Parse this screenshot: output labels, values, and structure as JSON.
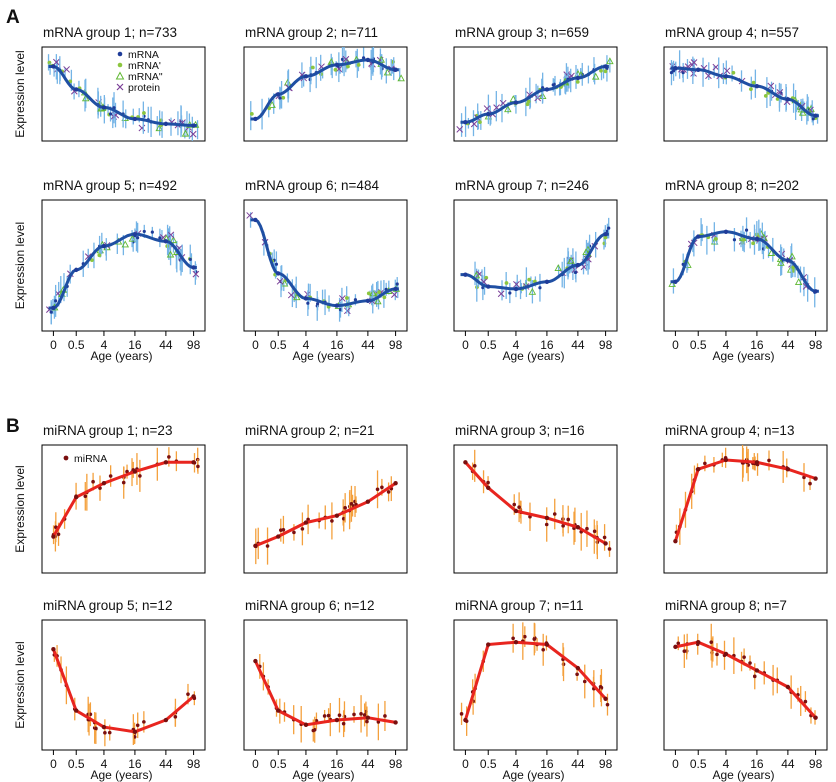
{
  "panel_letters": [
    "A",
    "B"
  ],
  "y_axis_label": "Expression level",
  "x_axis_label": "Age (years)",
  "x_ticks": [
    "0",
    "0.5",
    "4",
    "16",
    "44",
    "98"
  ],
  "colors": {
    "mrna": "#1f3c99",
    "mrna_prime": "#8cc63f",
    "mrna_dprime": "#5fb832",
    "protein": "#7b3f98",
    "mrna_fit": "#1f4fa3",
    "mrna_errbar": "#74b4e6",
    "mirna": "#7a0f0f",
    "mirna_fit": "#e8251f",
    "mirna_errbar": "#f4a03c"
  },
  "legends": {
    "mrna": [
      "mRNA",
      "mRNA'",
      "mRNA\"",
      "protein"
    ],
    "mirna": [
      "miRNA"
    ]
  },
  "chart_data": [
    {
      "type": "line",
      "section": "A",
      "title": "mRNA group 1;  n=733",
      "xlabel": "",
      "ylabel": "Expression level",
      "x": [
        0,
        0.5,
        4,
        16,
        44,
        98
      ],
      "series": [
        {
          "name": "mRNA",
          "values": [
            0.86,
            0.58,
            0.36,
            0.22,
            0.16,
            0.14
          ]
        }
      ]
    },
    {
      "type": "line",
      "section": "A",
      "title": "mRNA group 2;  n=711",
      "xlabel": "",
      "ylabel": "Expression level",
      "x": [
        0,
        0.5,
        4,
        16,
        44,
        98
      ],
      "series": [
        {
          "name": "mRNA",
          "values": [
            0.22,
            0.52,
            0.74,
            0.88,
            0.94,
            0.82
          ]
        }
      ]
    },
    {
      "type": "line",
      "section": "A",
      "title": "mRNA group 3;  n=659",
      "xlabel": "",
      "ylabel": "Expression level",
      "x": [
        0,
        0.5,
        4,
        16,
        44,
        98
      ],
      "series": [
        {
          "name": "mRNA",
          "values": [
            0.18,
            0.28,
            0.42,
            0.58,
            0.72,
            0.86
          ]
        }
      ]
    },
    {
      "type": "line",
      "section": "A",
      "title": "mRNA group 4;  n=557",
      "xlabel": "",
      "ylabel": "Expression level",
      "x": [
        0,
        0.5,
        4,
        16,
        44,
        98
      ],
      "series": [
        {
          "name": "mRNA",
          "values": [
            0.84,
            0.82,
            0.74,
            0.62,
            0.46,
            0.26
          ]
        }
      ]
    },
    {
      "type": "line",
      "section": "A",
      "title": "mRNA group 5;  n=492",
      "xlabel": "",
      "ylabel": "Expression level",
      "x": [
        0,
        0.5,
        4,
        16,
        44,
        98
      ],
      "series": [
        {
          "name": "mRNA",
          "values": [
            0.16,
            0.48,
            0.68,
            0.78,
            0.72,
            0.5
          ]
        }
      ]
    },
    {
      "type": "line",
      "section": "A",
      "title": "mRNA group 6;  n=484",
      "xlabel": "",
      "ylabel": "Expression level",
      "x": [
        0,
        0.5,
        4,
        16,
        44,
        98
      ],
      "series": [
        {
          "name": "mRNA",
          "values": [
            0.9,
            0.45,
            0.24,
            0.18,
            0.22,
            0.32
          ]
        }
      ]
    },
    {
      "type": "line",
      "section": "A",
      "title": "mRNA group 7;  n=246",
      "xlabel": "",
      "ylabel": "Expression level",
      "x": [
        0,
        0.5,
        4,
        16,
        44,
        98
      ],
      "series": [
        {
          "name": "mRNA",
          "values": [
            0.44,
            0.34,
            0.32,
            0.38,
            0.52,
            0.78
          ]
        }
      ]
    },
    {
      "type": "line",
      "section": "A",
      "title": "mRNA group 8;  n=202",
      "xlabel": "",
      "ylabel": "Expression level",
      "x": [
        0,
        0.5,
        4,
        16,
        44,
        98
      ],
      "series": [
        {
          "name": "mRNA",
          "values": [
            0.38,
            0.76,
            0.8,
            0.74,
            0.56,
            0.3
          ]
        }
      ]
    },
    {
      "type": "line",
      "section": "B",
      "title": "miRNA group 1;  n=23",
      "xlabel": "",
      "ylabel": "Expression level",
      "x": [
        0,
        0.5,
        4,
        16,
        44,
        98
      ],
      "series": [
        {
          "name": "miRNA",
          "values": [
            0.28,
            0.62,
            0.74,
            0.84,
            0.92,
            0.92
          ]
        }
      ]
    },
    {
      "type": "line",
      "section": "B",
      "title": "miRNA group 2;  n=21",
      "xlabel": "",
      "ylabel": "Expression level",
      "x": [
        0,
        0.5,
        4,
        16,
        44,
        98
      ],
      "series": [
        {
          "name": "miRNA",
          "values": [
            0.2,
            0.28,
            0.4,
            0.46,
            0.58,
            0.74
          ]
        }
      ]
    },
    {
      "type": "line",
      "section": "B",
      "title": "miRNA group 3;  n=16",
      "xlabel": "",
      "ylabel": "Expression level",
      "x": [
        0,
        0.5,
        4,
        16,
        44,
        98
      ],
      "series": [
        {
          "name": "miRNA",
          "values": [
            0.92,
            0.7,
            0.5,
            0.44,
            0.36,
            0.22
          ]
        }
      ]
    },
    {
      "type": "line",
      "section": "B",
      "title": "miRNA group 4;  n=13",
      "xlabel": "",
      "ylabel": "Expression level",
      "x": [
        0,
        0.5,
        4,
        16,
        44,
        98
      ],
      "series": [
        {
          "name": "miRNA",
          "values": [
            0.24,
            0.86,
            0.94,
            0.92,
            0.86,
            0.78
          ]
        }
      ]
    },
    {
      "type": "line",
      "section": "B",
      "title": "miRNA group 5;  n=12",
      "xlabel": "",
      "ylabel": "Expression level",
      "x": [
        0,
        0.5,
        4,
        16,
        44,
        98
      ],
      "series": [
        {
          "name": "miRNA",
          "values": [
            0.82,
            0.3,
            0.16,
            0.12,
            0.22,
            0.42
          ]
        }
      ]
    },
    {
      "type": "line",
      "section": "B",
      "title": "miRNA group 6;  n=12",
      "xlabel": "",
      "ylabel": "Expression level",
      "x": [
        0,
        0.5,
        4,
        16,
        44,
        98
      ],
      "series": [
        {
          "name": "miRNA",
          "values": [
            0.72,
            0.3,
            0.18,
            0.22,
            0.24,
            0.2
          ]
        }
      ]
    },
    {
      "type": "line",
      "section": "B",
      "title": "miRNA group 7;  n=11",
      "xlabel": "",
      "ylabel": "Expression level",
      "x": [
        0,
        0.5,
        4,
        16,
        44,
        98
      ],
      "series": [
        {
          "name": "miRNA",
          "values": [
            0.22,
            0.86,
            0.88,
            0.86,
            0.66,
            0.4
          ]
        }
      ]
    },
    {
      "type": "line",
      "section": "B",
      "title": "miRNA group 8;  n=7",
      "xlabel": "",
      "ylabel": "Expression level",
      "x": [
        0,
        0.5,
        4,
        16,
        44,
        98
      ],
      "series": [
        {
          "name": "miRNA",
          "values": [
            0.84,
            0.88,
            0.78,
            0.64,
            0.5,
            0.24
          ]
        }
      ]
    }
  ]
}
